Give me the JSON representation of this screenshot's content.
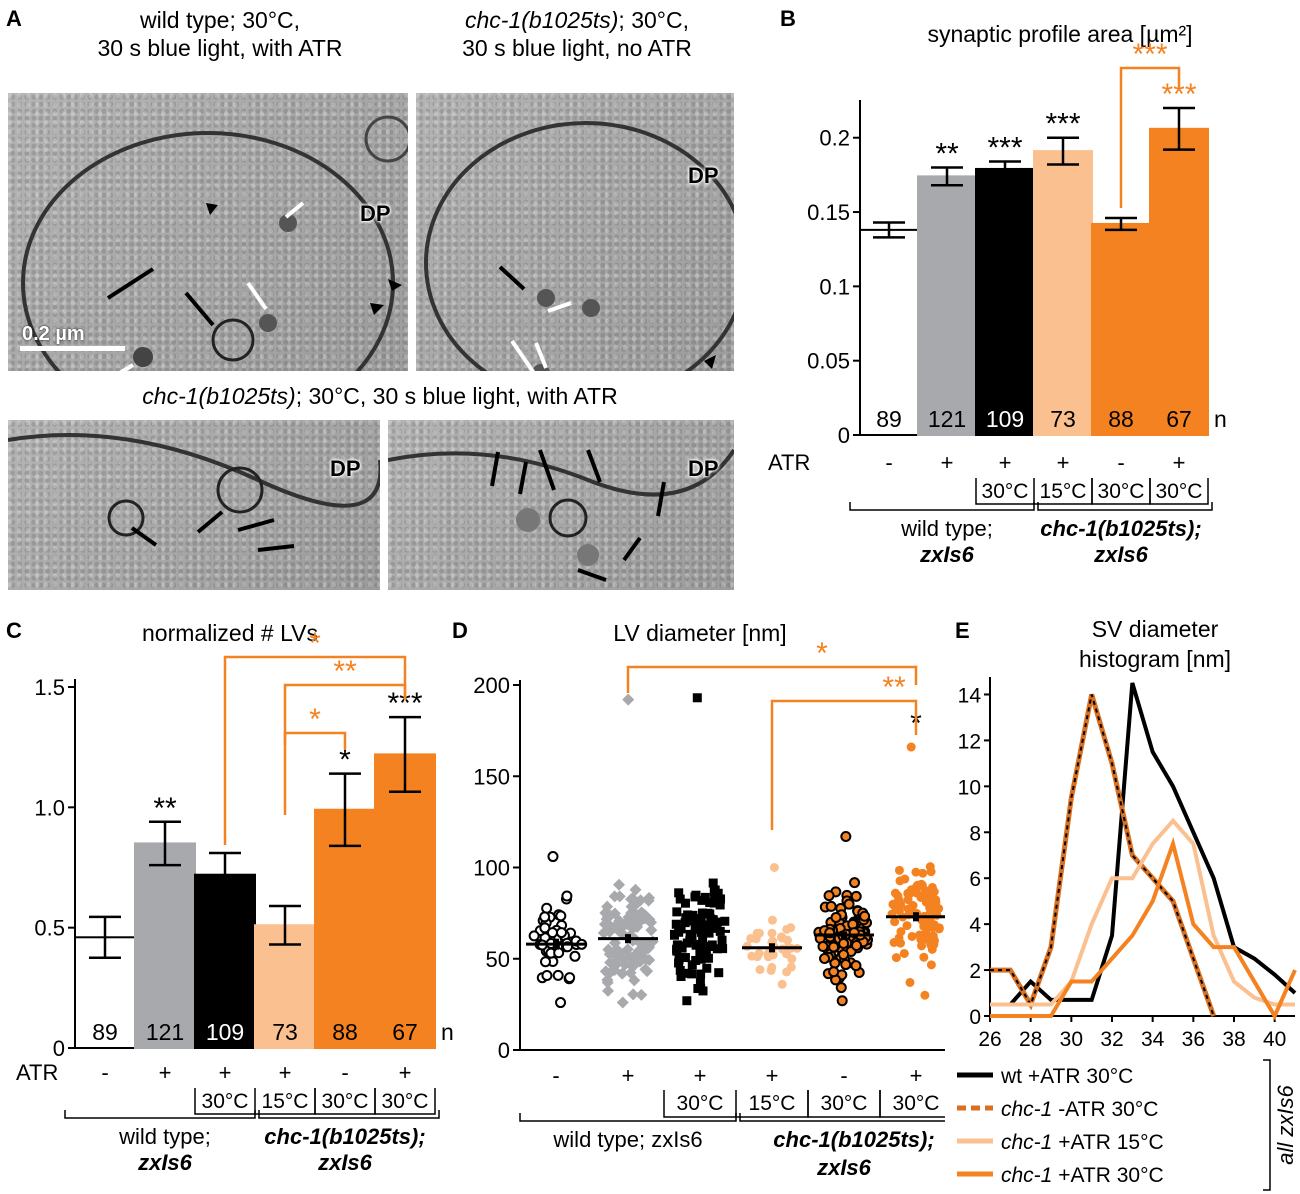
{
  "panel_a": {
    "letter": "A",
    "img1_caption_l1": "wild type; 30°C,",
    "img1_caption_l2": "30 s blue light, with ATR",
    "img2_caption_gene": "chc-1(b1025ts)",
    "img2_caption_rest": "; 30°C,",
    "img2_caption_l2": "30 s blue light, no ATR",
    "bottom_caption_gene": "chc-1(b1025ts)",
    "bottom_caption_rest": "; 30°C, 30 s blue light, with ATR",
    "dp_label": "DP",
    "scale_bar": "0.2 µm"
  },
  "panel_b": {
    "letter": "B",
    "chart_data": {
      "type": "bar",
      "title": "synaptic profile area [µm²]",
      "ylim": [
        0,
        0.22
      ],
      "yticks": [
        "0",
        "0.05",
        "0.1",
        "0.15",
        "0.2"
      ],
      "ytick_values": [
        0,
        0.05,
        0.1,
        0.15,
        0.2
      ],
      "values": [
        0.138,
        0.174,
        0.179,
        0.191,
        0.142,
        0.206
      ],
      "errors": [
        0.005,
        0.006,
        0.005,
        0.009,
        0.004,
        0.014
      ],
      "n": [
        "89",
        "121",
        "109",
        "73",
        "88",
        "67"
      ],
      "n_label": "n",
      "colors": [
        "#ffffff",
        "#a7a9ac",
        "#000000",
        "#fbc08f",
        "#f58220",
        "#f58220"
      ],
      "n_colors": [
        "#000000",
        "#000000",
        "#ffffff",
        "#000000",
        "#000000",
        "#000000"
      ],
      "sig": [
        "",
        "**",
        "***",
        "***",
        "",
        "***"
      ],
      "sig_colors": [
        "#000000",
        "#000000",
        "#000000",
        "#000000",
        "#000000",
        "#f58220"
      ],
      "brackets": [
        {
          "from": 4,
          "to": 5,
          "label": "***",
          "color": "#f58220"
        }
      ],
      "atr_label": "ATR",
      "atr": [
        "-",
        "+",
        "+",
        "+",
        "-",
        "+"
      ],
      "temps": [
        "",
        "",
        "30°C",
        "15°C",
        "30°C",
        "30°C"
      ],
      "group1": [
        "wild type;",
        "zxIs6"
      ],
      "group2": [
        "chc-1(b1025ts);",
        "zxIs6"
      ]
    }
  },
  "panel_c": {
    "letter": "C",
    "chart_data": {
      "type": "bar",
      "title": "normalized # LVs",
      "ylim": [
        0,
        1.5
      ],
      "yticks": [
        "0",
        "0.5",
        "1.0",
        "1.5"
      ],
      "ytick_values": [
        0,
        0.5,
        1.0,
        1.5
      ],
      "values": [
        0.46,
        0.85,
        0.72,
        0.51,
        0.99,
        1.22
      ],
      "errors": [
        0.085,
        0.09,
        0.09,
        0.08,
        0.15,
        0.155
      ],
      "n": [
        "89",
        "121",
        "109",
        "73",
        "88",
        "67"
      ],
      "n_label": "n",
      "colors": [
        "#ffffff",
        "#a7a9ac",
        "#000000",
        "#fbc08f",
        "#f58220",
        "#f58220"
      ],
      "n_colors": [
        "#000000",
        "#000000",
        "#ffffff",
        "#000000",
        "#000000",
        "#000000"
      ],
      "sig": [
        "",
        "**",
        "",
        "",
        "*",
        "***"
      ],
      "sig_colors": [
        "#000000",
        "#000000",
        "#000000",
        "#000000",
        "#000000",
        "#000000"
      ],
      "brackets": [
        {
          "from": 2,
          "to": 5,
          "label": "*",
          "color": "#f58220"
        },
        {
          "from": 3,
          "to": 5,
          "label": "**",
          "color": "#f58220"
        },
        {
          "from": 3,
          "to": 4,
          "label": "*",
          "color": "#f58220"
        }
      ],
      "atr_label": "ATR",
      "atr": [
        "-",
        "+",
        "+",
        "+",
        "-",
        "+"
      ],
      "temps": [
        "",
        "",
        "30°C",
        "15°C",
        "30°C",
        "30°C"
      ],
      "group1": [
        "wild type;",
        "zxIs6"
      ],
      "group2": [
        "chc-1(b1025ts);",
        "zxIs6"
      ]
    }
  },
  "panel_d": {
    "letter": "D",
    "chart_data": {
      "type": "scatter",
      "title": "LV diameter [nm]",
      "ylim": [
        0,
        200
      ],
      "yticks": [
        "0",
        "50",
        "100",
        "150",
        "200"
      ],
      "ytick_values": [
        0,
        50,
        100,
        150,
        200
      ],
      "means": [
        58,
        61,
        65,
        56,
        63,
        73
      ],
      "sems": [
        3,
        2.5,
        3,
        2.5,
        2,
        2.5
      ],
      "mins": [
        26,
        26,
        27,
        36,
        27,
        30
      ],
      "maxs": [
        106,
        192,
        193,
        100,
        117,
        166
      ],
      "counts": [
        45,
        110,
        95,
        35,
        105,
        95
      ],
      "markers": [
        "open-circle",
        "diamond",
        "square",
        "circle",
        "circle-outlined",
        "circle"
      ],
      "colors": [
        "#000000",
        "#a7a9ac",
        "#000000",
        "#fbc08f",
        "#f58220",
        "#f58220"
      ],
      "sig": [
        "",
        "",
        "",
        "",
        "",
        "*"
      ],
      "brackets": [
        {
          "from": 1,
          "to": 5,
          "label": "*",
          "color": "#f58220"
        },
        {
          "from": 3,
          "to": 5,
          "label": "**",
          "color": "#f58220"
        }
      ],
      "atr": [
        "-",
        "+",
        "+",
        "+",
        "-",
        "+"
      ],
      "temps": [
        "",
        "",
        "30°C",
        "15°C",
        "30°C",
        "30°C"
      ],
      "group1": [
        "wild type; zxIs6"
      ],
      "group2": [
        "chc-1(b1025ts);",
        "zxIs6"
      ]
    }
  },
  "panel_e": {
    "letter": "E",
    "chart_data": {
      "type": "line",
      "title": "SV diameter histogram [nm]",
      "title_lines": [
        "SV diameter",
        "histogram [nm]"
      ],
      "xlim": [
        26,
        41
      ],
      "ylim": [
        0,
        14.5
      ],
      "xticks": [
        "26",
        "28",
        "30",
        "32",
        "34",
        "36",
        "38",
        "40"
      ],
      "xtick_values": [
        26,
        28,
        30,
        32,
        34,
        36,
        38,
        40
      ],
      "yticks": [
        "0",
        "2",
        "4",
        "6",
        "8",
        "10",
        "12",
        "14"
      ],
      "ytick_values": [
        0,
        2,
        4,
        6,
        8,
        10,
        12,
        14
      ],
      "series": [
        {
          "name": "wt +ATR 30°C",
          "color": "#000000",
          "dash": false,
          "x": [
            26,
            27,
            28,
            29,
            30,
            31,
            32,
            33,
            34,
            35,
            36,
            37,
            38,
            39,
            40,
            41
          ],
          "y": [
            0.5,
            0.5,
            1.5,
            0.7,
            0.7,
            0.7,
            3.5,
            14.5,
            11.5,
            10,
            8,
            6,
            3,
            2.5,
            1.8,
            1
          ]
        },
        {
          "name": "chc-1 -ATR 30°C",
          "color": "#d96f1f",
          "dash": true,
          "x": [
            26,
            27,
            28,
            29,
            30,
            31,
            32,
            33,
            34,
            35,
            36,
            37
          ],
          "y": [
            2,
            2,
            0.5,
            3,
            9.5,
            14,
            11,
            7,
            6,
            5,
            2.5,
            0
          ]
        },
        {
          "name": "chc-1 +ATR 15°C",
          "color": "#fbc08f",
          "dash": false,
          "x": [
            26,
            27,
            28,
            29,
            30,
            31,
            32,
            33,
            34,
            35,
            36,
            37,
            38,
            39,
            40,
            41
          ],
          "y": [
            0.5,
            0.5,
            0.5,
            0.5,
            1.5,
            4,
            6,
            6,
            7.5,
            8.5,
            7.5,
            3.5,
            1.5,
            0.8,
            0.5,
            0.5
          ]
        },
        {
          "name": "chc-1 +ATR 30°C",
          "color": "#f58220",
          "dash": false,
          "x": [
            26,
            27,
            28,
            29,
            30,
            31,
            32,
            33,
            34,
            35,
            36,
            37,
            38,
            39,
            40,
            41
          ],
          "y": [
            0,
            0,
            0,
            0,
            1.5,
            1.5,
            2.5,
            3.5,
            5,
            7.5,
            4,
            3,
            3,
            1.5,
            0,
            2
          ]
        }
      ],
      "legend_side_label": "all zxIs6"
    }
  }
}
